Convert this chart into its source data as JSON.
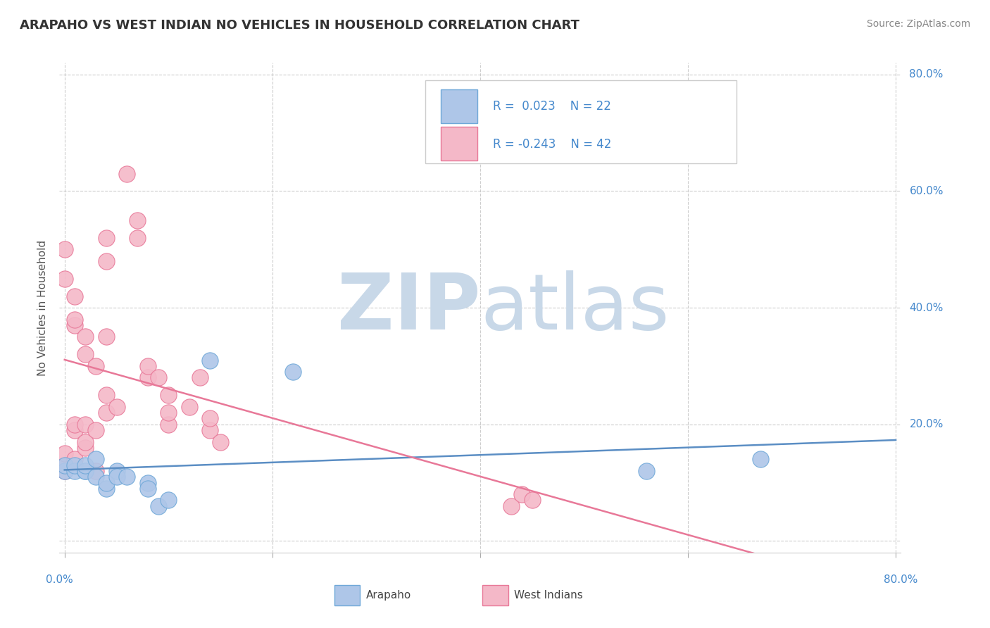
{
  "title": "ARAPAHO VS WEST INDIAN NO VEHICLES IN HOUSEHOLD CORRELATION CHART",
  "source": "Source: ZipAtlas.com",
  "ylabel": "No Vehicles in Household",
  "xlim": [
    -0.005,
    0.805
  ],
  "ylim": [
    -0.02,
    0.82
  ],
  "xticks": [
    0.0,
    0.2,
    0.4,
    0.6,
    0.8
  ],
  "yticks": [
    0.0,
    0.2,
    0.4,
    0.6,
    0.8
  ],
  "xtick_labels": [
    "0.0%",
    "",
    "",
    "",
    "80.0%"
  ],
  "ytick_labels_right": [
    "",
    "20.0%",
    "40.0%",
    "60.0%",
    "80.0%"
  ],
  "legend_r_blue": "R =  0.023",
  "legend_n_blue": "N = 22",
  "legend_r_pink": "R = -0.243",
  "legend_n_pink": "N = 42",
  "watermark_color": "#c8d8e8",
  "blue_color": "#aec6e8",
  "blue_edge": "#6fa8d8",
  "pink_color": "#f4b8c8",
  "pink_edge": "#e87898",
  "blue_line_color": "#5b8ec4",
  "pink_line_color": "#e87898",
  "grid_color": "#c8c8c8",
  "title_color": "#333333",
  "label_color": "#888888",
  "tick_color": "#4488cc",
  "arapaho_x": [
    0.0,
    0.0,
    0.01,
    0.01,
    0.02,
    0.02,
    0.02,
    0.03,
    0.03,
    0.04,
    0.04,
    0.05,
    0.05,
    0.06,
    0.08,
    0.08,
    0.09,
    0.1,
    0.14,
    0.22,
    0.56,
    0.67
  ],
  "arapaho_y": [
    0.12,
    0.13,
    0.12,
    0.13,
    0.12,
    0.12,
    0.13,
    0.14,
    0.11,
    0.09,
    0.1,
    0.12,
    0.11,
    0.11,
    0.1,
    0.09,
    0.06,
    0.07,
    0.31,
    0.29,
    0.12,
    0.14
  ],
  "westindian_x": [
    0.0,
    0.0,
    0.0,
    0.0,
    0.0,
    0.01,
    0.01,
    0.01,
    0.01,
    0.01,
    0.01,
    0.02,
    0.02,
    0.02,
    0.02,
    0.02,
    0.03,
    0.03,
    0.03,
    0.04,
    0.04,
    0.04,
    0.04,
    0.04,
    0.05,
    0.06,
    0.07,
    0.07,
    0.08,
    0.08,
    0.09,
    0.1,
    0.1,
    0.1,
    0.12,
    0.13,
    0.14,
    0.14,
    0.15,
    0.43,
    0.44,
    0.45
  ],
  "westindian_y": [
    0.12,
    0.13,
    0.15,
    0.45,
    0.5,
    0.14,
    0.19,
    0.2,
    0.37,
    0.38,
    0.42,
    0.16,
    0.17,
    0.2,
    0.32,
    0.35,
    0.12,
    0.19,
    0.3,
    0.22,
    0.25,
    0.35,
    0.48,
    0.52,
    0.23,
    0.63,
    0.52,
    0.55,
    0.28,
    0.3,
    0.28,
    0.2,
    0.22,
    0.25,
    0.23,
    0.28,
    0.19,
    0.21,
    0.17,
    0.06,
    0.08,
    0.07
  ]
}
